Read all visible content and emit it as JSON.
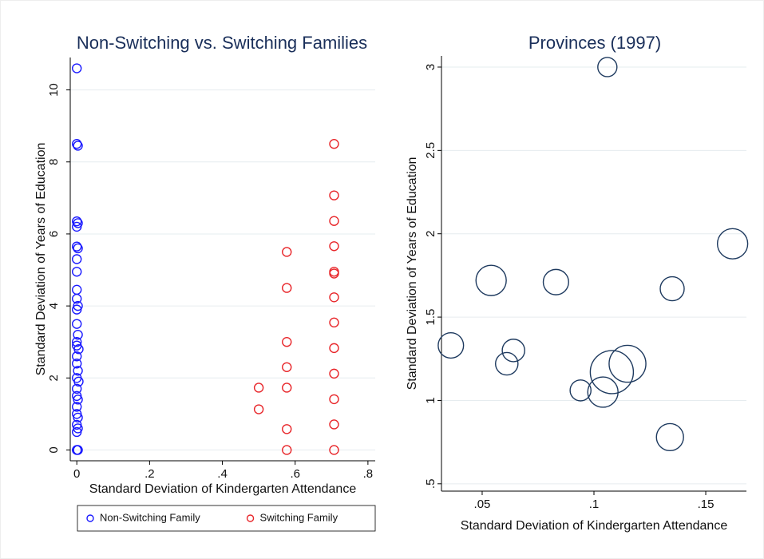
{
  "chart_data": [
    {
      "type": "scatter",
      "title": "Non-Switching vs. Switching Families",
      "x_label": "Standard Deviation of Kindergarten Attendance",
      "y_label": "Standard Deviation of Years of Education",
      "xlim": [
        -0.018,
        0.82
      ],
      "ylim": [
        -0.3,
        10.9
      ],
      "xticks": [
        0,
        {
          "value": 0.2,
          "label": ".2"
        },
        {
          "value": 0.4,
          "label": ".4"
        },
        {
          "value": 0.6,
          "label": ".6"
        },
        {
          "value": 0.8,
          "label": ".8"
        }
      ],
      "yticks": [
        0,
        2,
        4,
        6,
        8,
        10
      ],
      "grid": true,
      "legend": "bottom",
      "series": [
        {
          "name": "Non-Switching Family",
          "color": "#1a1aff",
          "x": [
            0,
            0,
            0.003,
            0,
            0.003,
            0,
            0,
            0.003,
            0,
            0,
            0,
            0,
            0.003,
            0,
            0,
            0.003,
            0,
            0,
            0.005,
            0,
            0,
            0.003,
            0,
            0.005,
            0,
            0,
            0.003,
            0,
            0,
            0.003,
            0,
            0.003,
            0,
            0,
            0.003
          ],
          "values": [
            10.6,
            8.5,
            8.45,
            6.35,
            6.3,
            6.2,
            5.65,
            5.6,
            5.3,
            4.95,
            4.45,
            4.2,
            4.0,
            3.9,
            3.5,
            3.2,
            3.0,
            2.9,
            2.8,
            2.6,
            2.4,
            2.2,
            2.0,
            1.9,
            1.7,
            1.5,
            1.4,
            1.2,
            1.0,
            0.9,
            0.7,
            0.6,
            0.5,
            0,
            0
          ]
        },
        {
          "name": "Switching Family",
          "color": "#e8262a",
          "x": [
            0.5,
            0.5,
            0.577,
            0.577,
            0.577,
            0.577,
            0.577,
            0.577,
            0.577,
            0.707,
            0.707,
            0.707,
            0.707,
            0.707,
            0.707,
            0.707,
            0.707,
            0.707,
            0.707,
            0.707,
            0.707,
            0.707
          ],
          "values": [
            1.73,
            1.13,
            5.5,
            4.5,
            3.0,
            2.3,
            1.73,
            0.58,
            0,
            8.5,
            7.07,
            6.36,
            5.66,
            4.95,
            4.9,
            4.24,
            3.54,
            2.83,
            2.12,
            1.41,
            0.71,
            0
          ]
        }
      ]
    },
    {
      "type": "bubble",
      "title": "Provinces (1997)",
      "x_label": "Standard Deviation of Kindergarten Attendance",
      "y_label": "Standard Deviation of Years of Education",
      "xlim": [
        0.0318,
        0.1682
      ],
      "ylim": [
        0.456,
        3.067
      ],
      "xticks": [
        {
          "value": 0.05,
          "label": ".05"
        },
        {
          "value": 0.1,
          "label": ".1"
        },
        {
          "value": 0.15,
          "label": ".15"
        }
      ],
      "yticks": [
        {
          "value": 0.5,
          "label": ".5"
        },
        1,
        1.5,
        2,
        2.5,
        3
      ],
      "grid": true,
      "color": "#1e3a5f",
      "x": [
        0.036,
        0.054,
        0.061,
        0.064,
        0.083,
        0.094,
        0.104,
        0.106,
        0.108,
        0.115,
        0.134,
        0.135,
        0.162
      ],
      "values": [
        1.33,
        1.72,
        1.22,
        1.3,
        1.71,
        1.06,
        1.05,
        3.0,
        1.17,
        1.22,
        0.78,
        1.67,
        1.94
      ],
      "sizes": [
        28,
        40,
        22,
        22,
        28,
        19,
        40,
        16,
        81,
        59,
        32,
        25,
        40
      ]
    }
  ]
}
